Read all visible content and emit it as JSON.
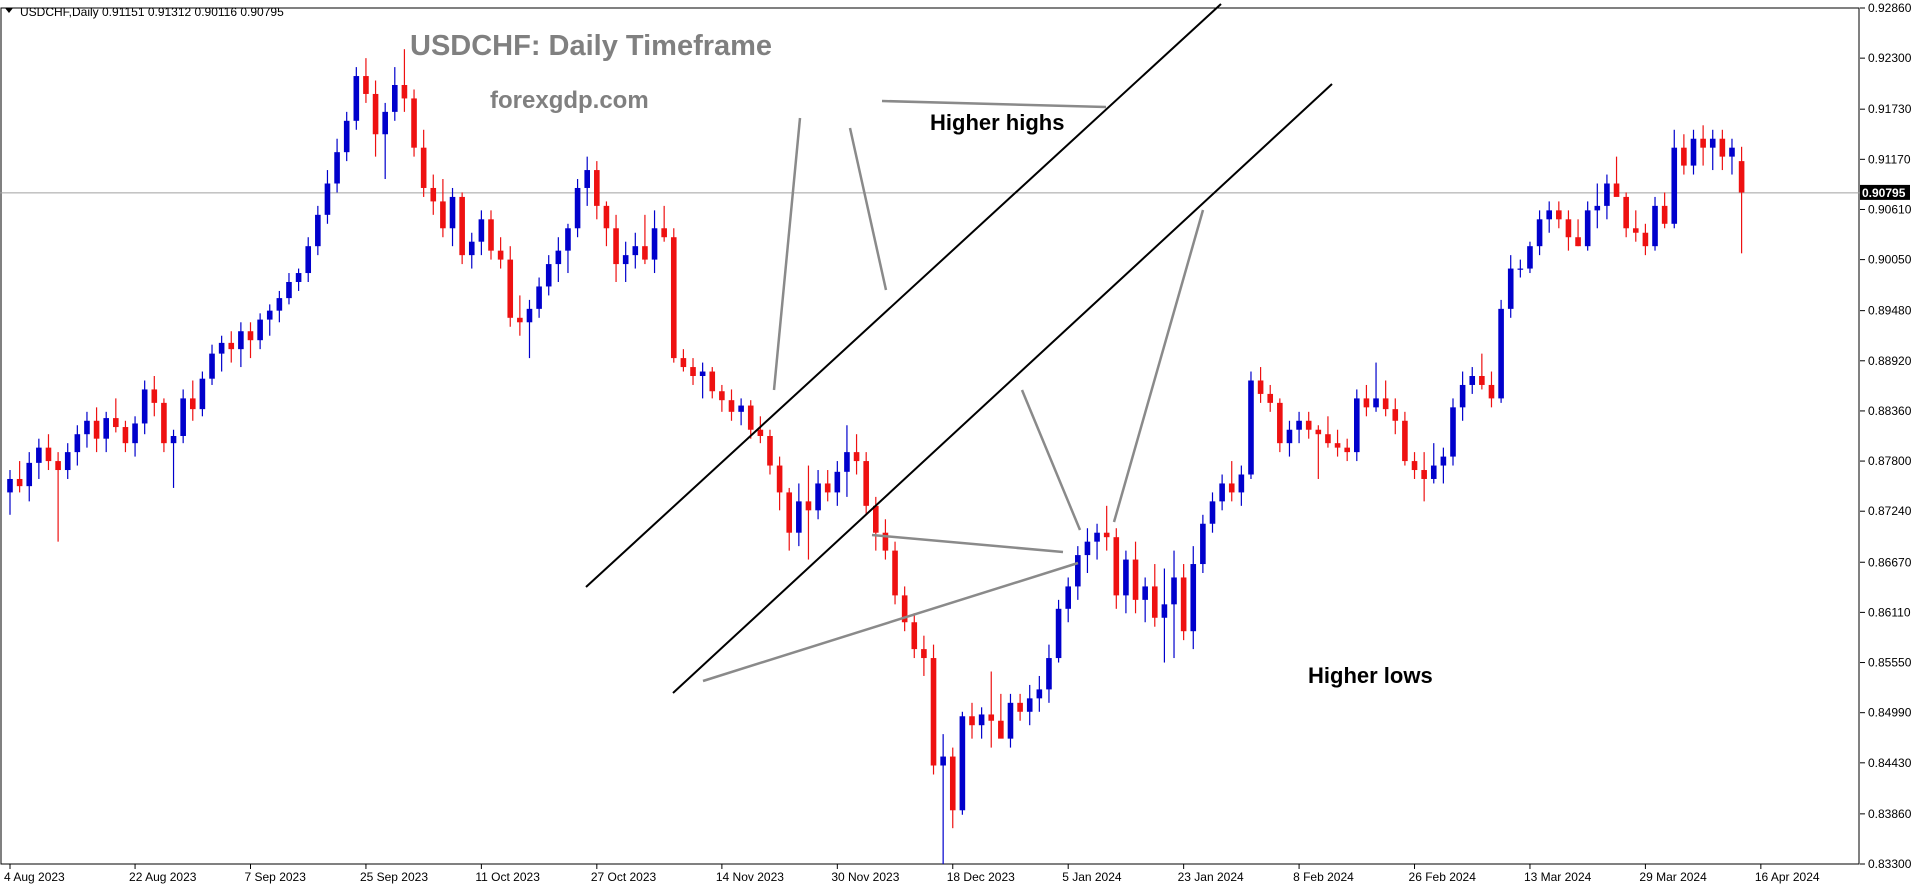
{
  "header": {
    "symbol_line": "USDCHF,Daily  0.91151  0.91312  0.90116  0.90795"
  },
  "chart_data": {
    "type": "candlestick",
    "title": "USDCHF: Daily Timeframe",
    "subtitle": "forexgdp.com",
    "ylim": [
      0.833,
      0.9286
    ],
    "y_ticks": [
      "0.92860",
      "0.92300",
      "0.91730",
      "0.91170",
      "0.90610",
      "0.90050",
      "0.89480",
      "0.88920",
      "0.88360",
      "0.87800",
      "0.87240",
      "0.86670",
      "0.86110",
      "0.85550",
      "0.84990",
      "0.84430",
      "0.83860",
      "0.83300"
    ],
    "x_ticks": [
      {
        "label": "4 Aug 2023",
        "i": 0
      },
      {
        "label": "22 Aug 2023",
        "i": 13
      },
      {
        "label": "7 Sep 2023",
        "i": 25
      },
      {
        "label": "25 Sep 2023",
        "i": 37
      },
      {
        "label": "11 Oct 2023",
        "i": 49
      },
      {
        "label": "27 Oct 2023",
        "i": 61
      },
      {
        "label": "14 Nov 2023",
        "i": 74
      },
      {
        "label": "30 Nov 2023",
        "i": 86
      },
      {
        "label": "18 Dec 2023",
        "i": 98
      },
      {
        "label": "5 Jan 2024",
        "i": 110
      },
      {
        "label": "23 Jan 2024",
        "i": 122
      },
      {
        "label": "8 Feb 2024",
        "i": 134
      },
      {
        "label": "26 Feb 2024",
        "i": 146
      },
      {
        "label": "13 Mar 2024",
        "i": 158
      },
      {
        "label": "29 Mar 2024",
        "i": 170
      },
      {
        "label": "16 Apr 2024",
        "i": 182
      }
    ],
    "current_price": "0.90795",
    "ohlc": [
      [
        0.8745,
        0.877,
        0.872,
        0.876
      ],
      [
        0.876,
        0.878,
        0.8745,
        0.8752
      ],
      [
        0.8752,
        0.879,
        0.8735,
        0.8778
      ],
      [
        0.8778,
        0.8805,
        0.876,
        0.8795
      ],
      [
        0.8795,
        0.881,
        0.877,
        0.878
      ],
      [
        0.878,
        0.879,
        0.869,
        0.877
      ],
      [
        0.877,
        0.88,
        0.876,
        0.879
      ],
      [
        0.879,
        0.882,
        0.8775,
        0.881
      ],
      [
        0.881,
        0.8835,
        0.8795,
        0.8825
      ],
      [
        0.8825,
        0.884,
        0.879,
        0.8805
      ],
      [
        0.8805,
        0.8835,
        0.879,
        0.8828
      ],
      [
        0.8828,
        0.885,
        0.8812,
        0.8818
      ],
      [
        0.8818,
        0.8825,
        0.879,
        0.88
      ],
      [
        0.88,
        0.883,
        0.8785,
        0.8822
      ],
      [
        0.8822,
        0.887,
        0.881,
        0.886
      ],
      [
        0.886,
        0.8875,
        0.883,
        0.8845
      ],
      [
        0.8845,
        0.885,
        0.879,
        0.88
      ],
      [
        0.88,
        0.8815,
        0.875,
        0.8808
      ],
      [
        0.8808,
        0.886,
        0.88,
        0.885
      ],
      [
        0.885,
        0.887,
        0.8825,
        0.8838
      ],
      [
        0.8838,
        0.888,
        0.883,
        0.8872
      ],
      [
        0.8872,
        0.891,
        0.8865,
        0.89
      ],
      [
        0.89,
        0.892,
        0.888,
        0.8912
      ],
      [
        0.8912,
        0.8925,
        0.889,
        0.8905
      ],
      [
        0.8905,
        0.8935,
        0.8885,
        0.8925
      ],
      [
        0.8925,
        0.8935,
        0.8895,
        0.8915
      ],
      [
        0.8915,
        0.8945,
        0.8905,
        0.8938
      ],
      [
        0.8938,
        0.8955,
        0.892,
        0.8948
      ],
      [
        0.8948,
        0.897,
        0.8935,
        0.8962
      ],
      [
        0.8962,
        0.899,
        0.8955,
        0.898
      ],
      [
        0.898,
        0.8995,
        0.897,
        0.899
      ],
      [
        0.899,
        0.903,
        0.898,
        0.902
      ],
      [
        0.902,
        0.9065,
        0.901,
        0.9055
      ],
      [
        0.9055,
        0.9105,
        0.9045,
        0.909
      ],
      [
        0.909,
        0.914,
        0.908,
        0.9125
      ],
      [
        0.9125,
        0.917,
        0.9115,
        0.916
      ],
      [
        0.916,
        0.922,
        0.915,
        0.921
      ],
      [
        0.921,
        0.923,
        0.918,
        0.919
      ],
      [
        0.919,
        0.9205,
        0.912,
        0.9145
      ],
      [
        0.9145,
        0.918,
        0.9095,
        0.917
      ],
      [
        0.917,
        0.922,
        0.916,
        0.92
      ],
      [
        0.92,
        0.924,
        0.917,
        0.9185
      ],
      [
        0.9185,
        0.9195,
        0.912,
        0.913
      ],
      [
        0.913,
        0.915,
        0.9075,
        0.9085
      ],
      [
        0.9085,
        0.91,
        0.9055,
        0.907
      ],
      [
        0.907,
        0.9095,
        0.903,
        0.904
      ],
      [
        0.904,
        0.9085,
        0.902,
        0.9075
      ],
      [
        0.9075,
        0.908,
        0.9,
        0.901
      ],
      [
        0.901,
        0.9035,
        0.8995,
        0.9025
      ],
      [
        0.9025,
        0.906,
        0.901,
        0.905
      ],
      [
        0.905,
        0.906,
        0.9005,
        0.9015
      ],
      [
        0.9015,
        0.903,
        0.8995,
        0.9005
      ],
      [
        0.9005,
        0.902,
        0.893,
        0.894
      ],
      [
        0.894,
        0.8965,
        0.892,
        0.8935
      ],
      [
        0.8935,
        0.896,
        0.8895,
        0.895
      ],
      [
        0.895,
        0.8985,
        0.894,
        0.8975
      ],
      [
        0.8975,
        0.901,
        0.8965,
        0.9
      ],
      [
        0.9,
        0.903,
        0.898,
        0.9015
      ],
      [
        0.9015,
        0.9045,
        0.899,
        0.904
      ],
      [
        0.904,
        0.9095,
        0.903,
        0.9085
      ],
      [
        0.9085,
        0.912,
        0.9065,
        0.9105
      ],
      [
        0.9105,
        0.9115,
        0.905,
        0.9065
      ],
      [
        0.9065,
        0.907,
        0.902,
        0.904
      ],
      [
        0.904,
        0.9055,
        0.898,
        0.9
      ],
      [
        0.9,
        0.9025,
        0.898,
        0.901
      ],
      [
        0.901,
        0.9035,
        0.8995,
        0.902
      ],
      [
        0.902,
        0.9055,
        0.9,
        0.9005
      ],
      [
        0.9005,
        0.906,
        0.899,
        0.904
      ],
      [
        0.904,
        0.9065,
        0.9025,
        0.903
      ],
      [
        0.903,
        0.904,
        0.889,
        0.8895
      ],
      [
        0.8895,
        0.8905,
        0.888,
        0.8885
      ],
      [
        0.8885,
        0.8895,
        0.8865,
        0.8875
      ],
      [
        0.8875,
        0.889,
        0.885,
        0.888
      ],
      [
        0.888,
        0.8885,
        0.885,
        0.8858
      ],
      [
        0.8858,
        0.8865,
        0.8835,
        0.8848
      ],
      [
        0.8848,
        0.886,
        0.8825,
        0.8835
      ],
      [
        0.8835,
        0.885,
        0.882,
        0.8842
      ],
      [
        0.8842,
        0.8848,
        0.8805,
        0.8815
      ],
      [
        0.8815,
        0.883,
        0.88,
        0.8808
      ],
      [
        0.8808,
        0.8815,
        0.8765,
        0.8775
      ],
      [
        0.8775,
        0.8785,
        0.8725,
        0.8745
      ],
      [
        0.8745,
        0.875,
        0.868,
        0.87
      ],
      [
        0.87,
        0.8755,
        0.8685,
        0.8735
      ],
      [
        0.8735,
        0.8775,
        0.867,
        0.8725
      ],
      [
        0.8725,
        0.877,
        0.8715,
        0.8755
      ],
      [
        0.8755,
        0.877,
        0.8735,
        0.8745
      ],
      [
        0.8745,
        0.878,
        0.873,
        0.8768
      ],
      [
        0.8768,
        0.882,
        0.874,
        0.879
      ],
      [
        0.879,
        0.881,
        0.8765,
        0.878
      ],
      [
        0.878,
        0.879,
        0.872,
        0.873
      ],
      [
        0.873,
        0.874,
        0.868,
        0.87
      ],
      [
        0.87,
        0.8715,
        0.867,
        0.868
      ],
      [
        0.868,
        0.869,
        0.862,
        0.863
      ],
      [
        0.863,
        0.864,
        0.859,
        0.86
      ],
      [
        0.86,
        0.861,
        0.856,
        0.857
      ],
      [
        0.857,
        0.8585,
        0.854,
        0.856
      ],
      [
        0.856,
        0.8575,
        0.843,
        0.844
      ],
      [
        0.844,
        0.8475,
        0.833,
        0.845
      ],
      [
        0.845,
        0.846,
        0.837,
        0.839
      ],
      [
        0.839,
        0.85,
        0.8385,
        0.8495
      ],
      [
        0.8495,
        0.851,
        0.847,
        0.8485
      ],
      [
        0.8485,
        0.8505,
        0.847,
        0.8497
      ],
      [
        0.8497,
        0.8545,
        0.846,
        0.849
      ],
      [
        0.849,
        0.852,
        0.8475,
        0.847
      ],
      [
        0.847,
        0.852,
        0.846,
        0.851
      ],
      [
        0.851,
        0.852,
        0.849,
        0.85
      ],
      [
        0.85,
        0.853,
        0.8485,
        0.8515
      ],
      [
        0.8515,
        0.854,
        0.85,
        0.8525
      ],
      [
        0.8525,
        0.8575,
        0.851,
        0.856
      ],
      [
        0.856,
        0.8625,
        0.8555,
        0.8615
      ],
      [
        0.8615,
        0.865,
        0.86,
        0.864
      ],
      [
        0.864,
        0.8685,
        0.8625,
        0.8675
      ],
      [
        0.8675,
        0.8705,
        0.8655,
        0.869
      ],
      [
        0.869,
        0.871,
        0.867,
        0.87
      ],
      [
        0.87,
        0.873,
        0.868,
        0.8695
      ],
      [
        0.8695,
        0.8705,
        0.8615,
        0.863
      ],
      [
        0.863,
        0.868,
        0.861,
        0.867
      ],
      [
        0.867,
        0.869,
        0.861,
        0.8625
      ],
      [
        0.8625,
        0.865,
        0.86,
        0.864
      ],
      [
        0.864,
        0.8665,
        0.8595,
        0.8605
      ],
      [
        0.8605,
        0.866,
        0.8555,
        0.862
      ],
      [
        0.862,
        0.868,
        0.856,
        0.865
      ],
      [
        0.865,
        0.8665,
        0.858,
        0.859
      ],
      [
        0.859,
        0.8685,
        0.857,
        0.8665
      ],
      [
        0.8665,
        0.872,
        0.8655,
        0.871
      ],
      [
        0.871,
        0.8745,
        0.87,
        0.8735
      ],
      [
        0.8735,
        0.8765,
        0.8725,
        0.8755
      ],
      [
        0.8755,
        0.878,
        0.8735,
        0.8745
      ],
      [
        0.8745,
        0.8775,
        0.873,
        0.8765
      ],
      [
        0.8765,
        0.888,
        0.876,
        0.887
      ],
      [
        0.887,
        0.8885,
        0.8845,
        0.8855
      ],
      [
        0.8855,
        0.8865,
        0.8835,
        0.8845
      ],
      [
        0.8845,
        0.885,
        0.879,
        0.88
      ],
      [
        0.88,
        0.8825,
        0.8785,
        0.8815
      ],
      [
        0.8815,
        0.8835,
        0.88,
        0.8825
      ],
      [
        0.8825,
        0.8835,
        0.8805,
        0.8815
      ],
      [
        0.8815,
        0.882,
        0.876,
        0.881
      ],
      [
        0.881,
        0.883,
        0.8795,
        0.88
      ],
      [
        0.88,
        0.8815,
        0.8785,
        0.8795
      ],
      [
        0.8795,
        0.8805,
        0.878,
        0.879
      ],
      [
        0.879,
        0.886,
        0.878,
        0.885
      ],
      [
        0.885,
        0.8865,
        0.883,
        0.884
      ],
      [
        0.884,
        0.889,
        0.8835,
        0.885
      ],
      [
        0.885,
        0.887,
        0.883,
        0.8838
      ],
      [
        0.8838,
        0.885,
        0.881,
        0.8825
      ],
      [
        0.8825,
        0.8835,
        0.8775,
        0.878
      ],
      [
        0.878,
        0.879,
        0.876,
        0.877
      ],
      [
        0.877,
        0.879,
        0.8735,
        0.876
      ],
      [
        0.876,
        0.88,
        0.8755,
        0.8775
      ],
      [
        0.8775,
        0.8795,
        0.8755,
        0.8785
      ],
      [
        0.8785,
        0.885,
        0.8775,
        0.884
      ],
      [
        0.884,
        0.888,
        0.8825,
        0.8865
      ],
      [
        0.8865,
        0.8885,
        0.8855,
        0.8875
      ],
      [
        0.8875,
        0.89,
        0.886,
        0.8865
      ],
      [
        0.8865,
        0.888,
        0.884,
        0.885
      ],
      [
        0.885,
        0.896,
        0.8845,
        0.895
      ],
      [
        0.895,
        0.901,
        0.894,
        0.8995
      ],
      [
        0.8995,
        0.9005,
        0.8985,
        0.8995
      ],
      [
        0.8995,
        0.9025,
        0.899,
        0.902
      ],
      [
        0.902,
        0.906,
        0.901,
        0.905
      ],
      [
        0.905,
        0.907,
        0.9035,
        0.906
      ],
      [
        0.906,
        0.907,
        0.904,
        0.905
      ],
      [
        0.905,
        0.906,
        0.9015,
        0.903
      ],
      [
        0.903,
        0.905,
        0.902,
        0.902
      ],
      [
        0.902,
        0.907,
        0.9015,
        0.906
      ],
      [
        0.906,
        0.909,
        0.904,
        0.9065
      ],
      [
        0.9065,
        0.91,
        0.905,
        0.909
      ],
      [
        0.909,
        0.912,
        0.908,
        0.9075
      ],
      [
        0.9075,
        0.908,
        0.903,
        0.904
      ],
      [
        0.904,
        0.906,
        0.9025,
        0.9035
      ],
      [
        0.9035,
        0.9045,
        0.901,
        0.902
      ],
      [
        0.902,
        0.9075,
        0.9015,
        0.9065
      ],
      [
        0.9065,
        0.908,
        0.904,
        0.9045
      ],
      [
        0.9045,
        0.915,
        0.904,
        0.913
      ],
      [
        0.913,
        0.9145,
        0.91,
        0.911
      ],
      [
        0.911,
        0.915,
        0.91,
        0.914
      ],
      [
        0.914,
        0.9155,
        0.911,
        0.913
      ],
      [
        0.913,
        0.915,
        0.9105,
        0.914
      ],
      [
        0.914,
        0.915,
        0.9105,
        0.912
      ],
      [
        0.912,
        0.914,
        0.91,
        0.913
      ],
      [
        0.9115,
        0.9131,
        0.9012,
        0.908
      ]
    ],
    "annotations": [
      {
        "id": "higher-highs",
        "text": "Higher highs"
      },
      {
        "id": "higher-lows",
        "text": "Higher lows"
      }
    ]
  },
  "colors": {
    "up": "#0000cc",
    "down": "#ee1111",
    "background": "#ffffff",
    "axis": "#000000",
    "title": "#808080",
    "price_line": "#a0a0a0",
    "annotation_line": "#8a8a8a",
    "channel": "#000000",
    "price_tag_bg": "#000000",
    "price_tag_text": "#ffffff"
  }
}
